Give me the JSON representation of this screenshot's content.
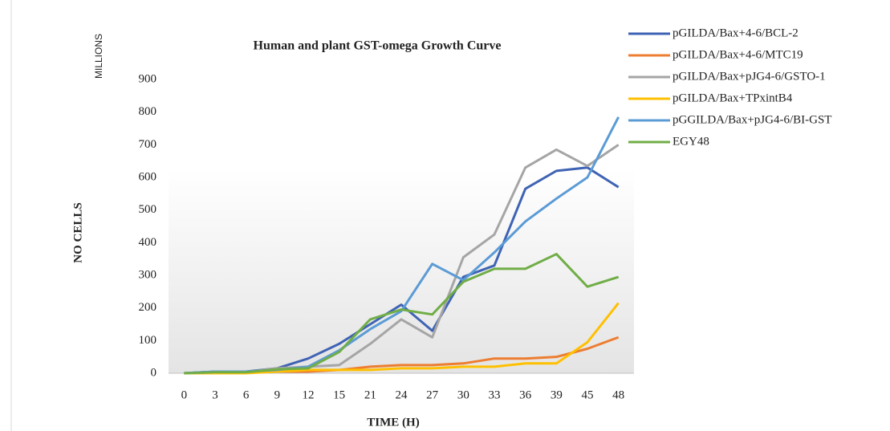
{
  "chart_data": {
    "type": "line",
    "title": "Human and plant GST-omega Growth Curve",
    "x_label": "TIME (H)",
    "y_label": "NO CELLS",
    "y_unit_label": "MILLIONS",
    "categories": [
      "0",
      "3",
      "6",
      "9",
      "12",
      "15",
      "21",
      "24",
      "27",
      "30",
      "33",
      "36",
      "39",
      "45",
      "48"
    ],
    "series": [
      {
        "name": "pGILDA/Bax+4-6/BCL-2",
        "color": "#3f63b4",
        "values": [
          0,
          5,
          5,
          15,
          45,
          90,
          150,
          210,
          130,
          295,
          330,
          565,
          620,
          630,
          570
        ]
      },
      {
        "name": "pGILDA/Bax+4-6/MTC19",
        "color": "#ed7d31",
        "values": [
          0,
          2,
          3,
          5,
          5,
          10,
          20,
          25,
          25,
          30,
          45,
          45,
          50,
          75,
          110
        ]
      },
      {
        "name": "pGILDA/Bax+pJG4-6/GSTO-1",
        "color": "#a5a5a5",
        "values": [
          0,
          3,
          3,
          15,
          20,
          25,
          90,
          165,
          110,
          355,
          425,
          630,
          685,
          635,
          700
        ]
      },
      {
        "name": "pGILDA/Bax+TPxintB4",
        "color": "#ffc000",
        "values": [
          0,
          0,
          0,
          5,
          10,
          10,
          10,
          15,
          15,
          20,
          20,
          30,
          30,
          95,
          215
        ]
      },
      {
        "name": "pGGILDA/Bax+pJG4-6/BI-GST",
        "color": "#5b9bd5",
        "values": [
          0,
          5,
          5,
          10,
          20,
          70,
          135,
          190,
          335,
          285,
          370,
          465,
          535,
          600,
          785
        ]
      },
      {
        "name": "EGY48",
        "color": "#70ad47",
        "values": [
          0,
          3,
          3,
          12,
          15,
          65,
          165,
          195,
          180,
          280,
          320,
          320,
          365,
          265,
          295
        ]
      }
    ],
    "ylim": [
      0,
      900
    ],
    "yticks": [
      0,
      100,
      200,
      300,
      400,
      500,
      600,
      700,
      800,
      900
    ],
    "grid": false,
    "legend": "right"
  }
}
